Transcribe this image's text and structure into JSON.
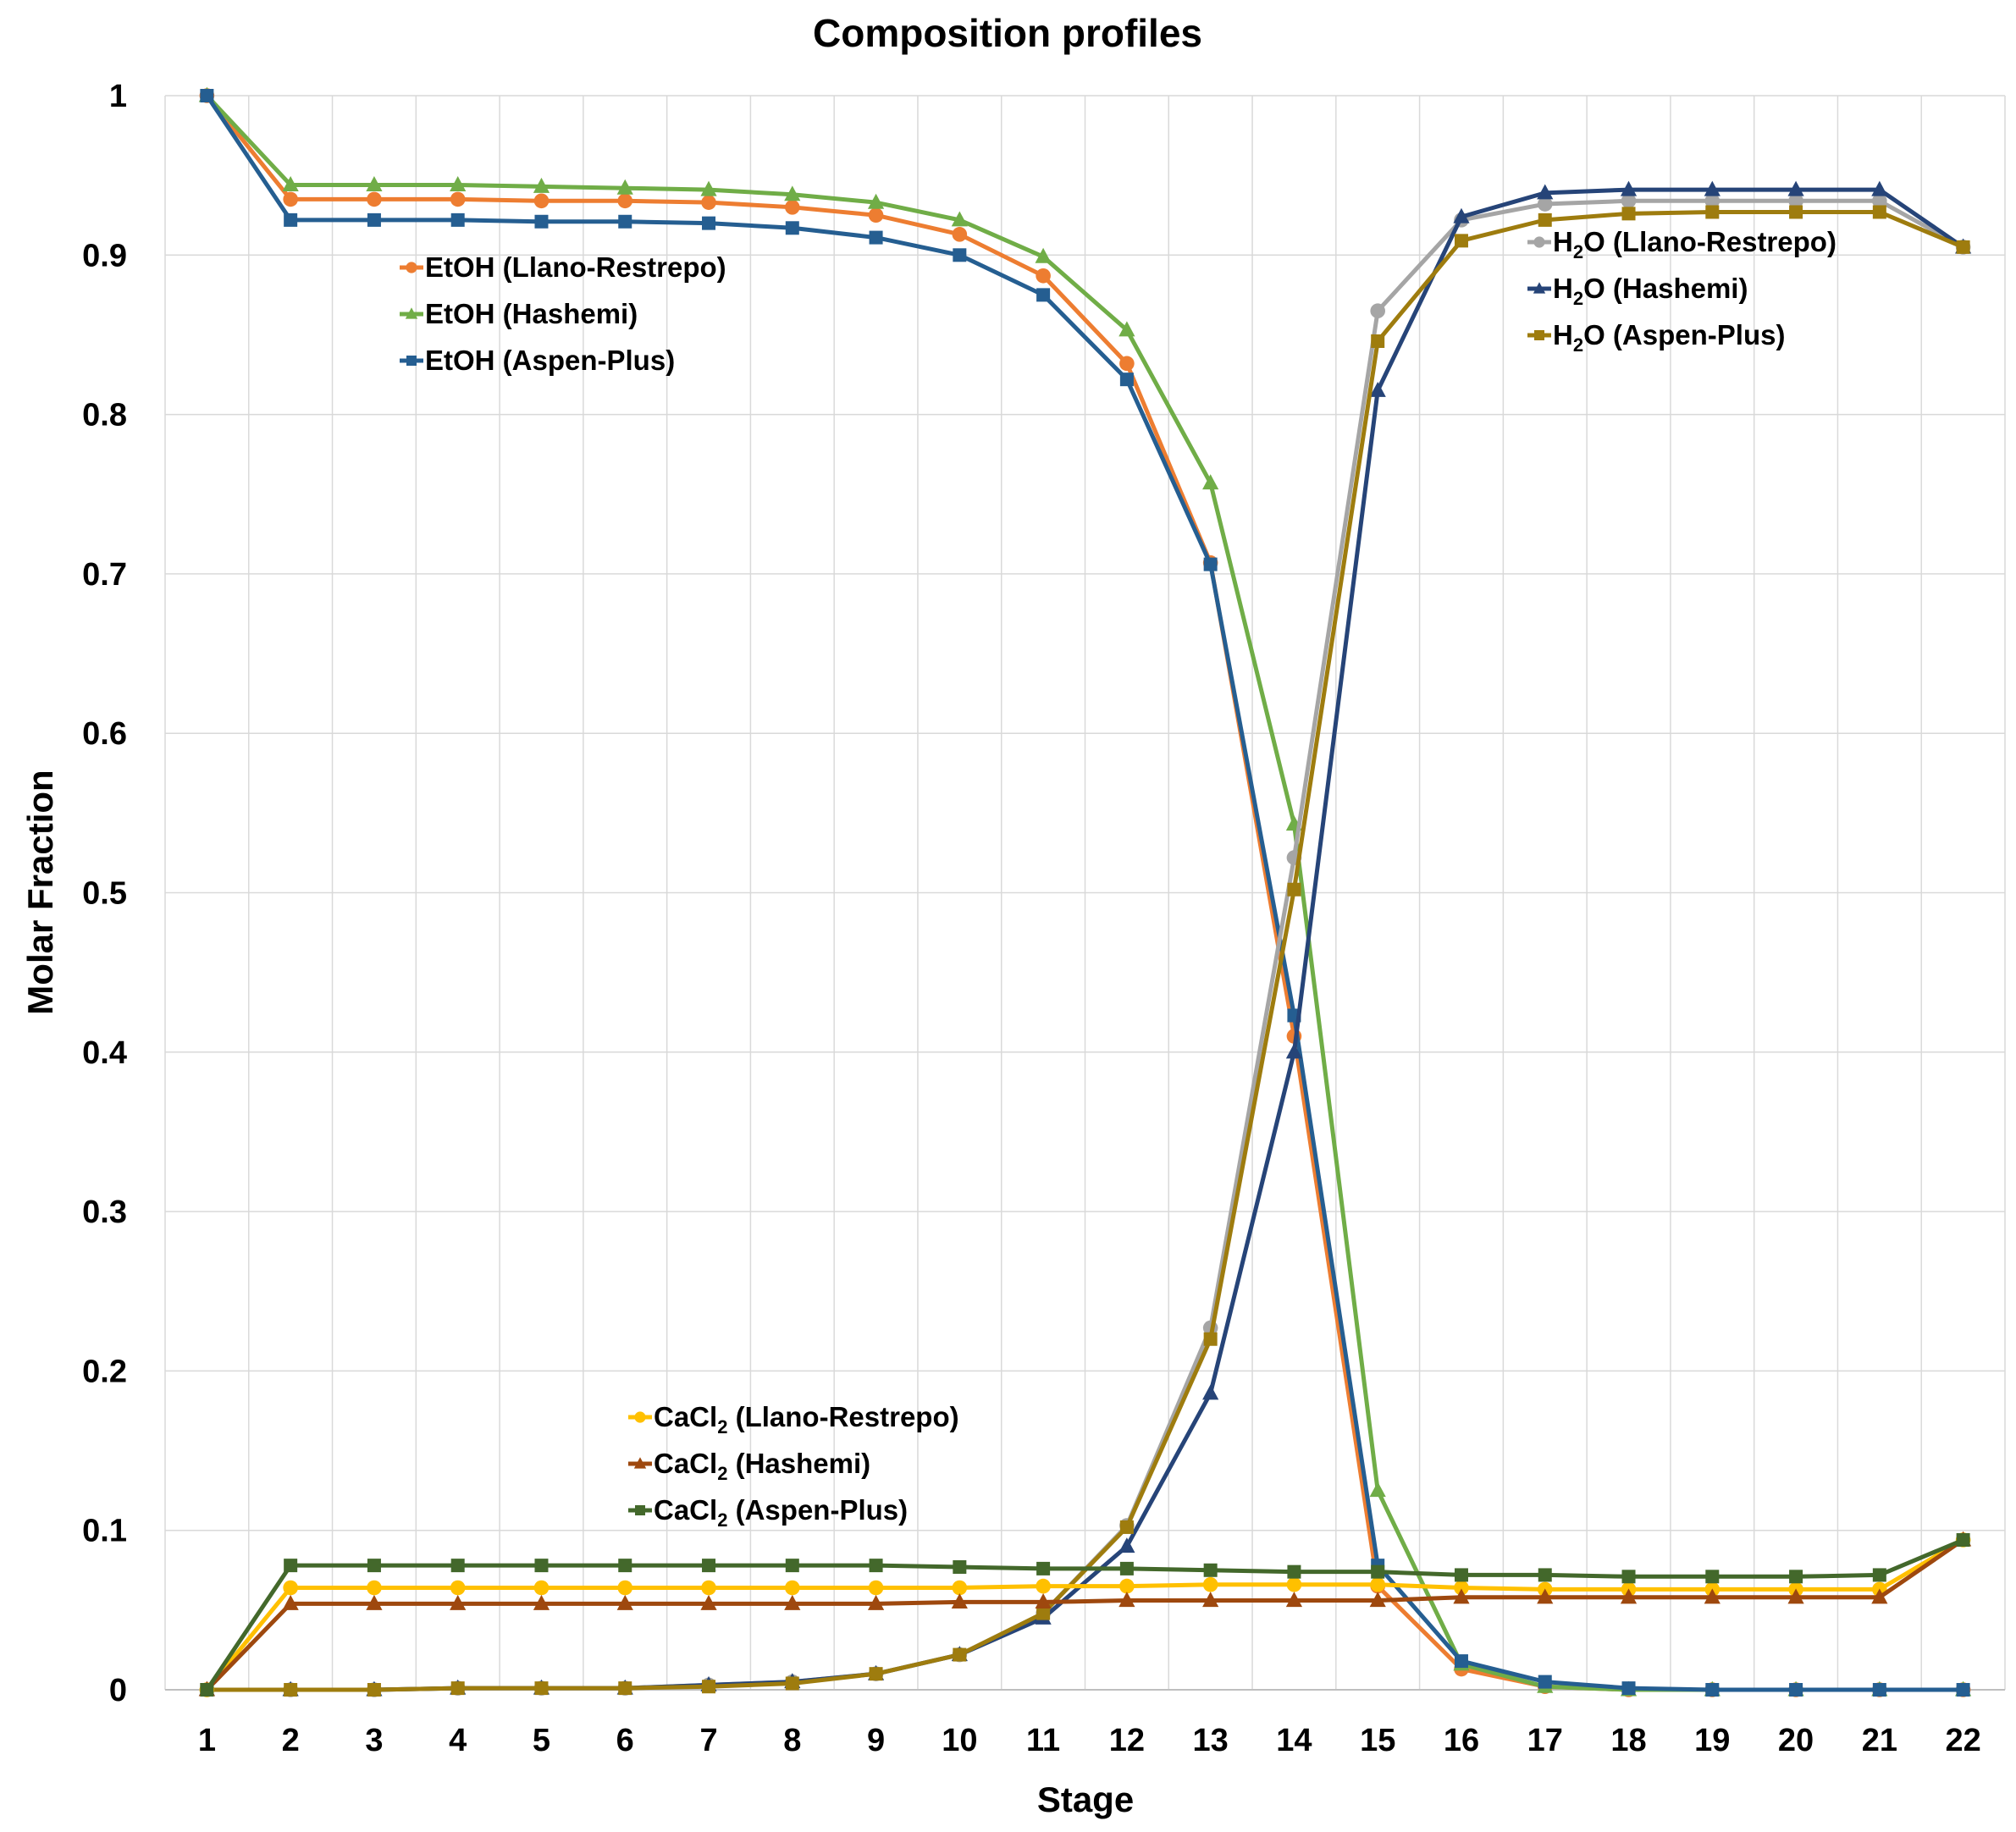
{
  "chart_data": {
    "type": "line",
    "title": "Composition profiles",
    "xlabel": "Stage",
    "ylabel": "Molar Fraction",
    "categories": [
      "1",
      "2",
      "3",
      "4",
      "5",
      "6",
      "7",
      "8",
      "9",
      "10",
      "11",
      "12",
      "13",
      "14",
      "15",
      "16",
      "17",
      "18",
      "19",
      "20",
      "21",
      "22"
    ],
    "ylim": [
      0,
      1
    ],
    "yticks": [
      "0",
      "0.1",
      "0.2",
      "0.3",
      "0.4",
      "0.5",
      "0.6",
      "0.7",
      "0.8",
      "0.9",
      "1"
    ],
    "grid": true,
    "legend_groups": [
      {
        "placement": "upper-left",
        "series": [
          0,
          1,
          2
        ]
      },
      {
        "placement": "upper-right",
        "series": [
          3,
          4,
          5
        ]
      },
      {
        "placement": "lower-center",
        "series": [
          6,
          7,
          8
        ]
      }
    ],
    "series": [
      {
        "name": "EtOH (Llano-Restrepo)",
        "legend_main": "EtOH (Llano-Restrepo)",
        "color": "#ED7D31",
        "marker": "circle",
        "values": [
          1.0,
          0.935,
          0.935,
          0.935,
          0.934,
          0.934,
          0.933,
          0.93,
          0.925,
          0.913,
          0.887,
          0.832,
          0.707,
          0.41,
          0.065,
          0.013,
          0.002,
          0.0,
          0.0,
          0.0,
          0.0,
          0.0
        ]
      },
      {
        "name": "EtOH (Hashemi)",
        "legend_main": "EtOH (Hashemi)",
        "color": "#70AD47",
        "marker": "triangle",
        "values": [
          1.0,
          0.944,
          0.944,
          0.944,
          0.943,
          0.942,
          0.941,
          0.938,
          0.933,
          0.922,
          0.899,
          0.853,
          0.757,
          0.543,
          0.125,
          0.016,
          0.002,
          0.0,
          0.0,
          0.0,
          0.0,
          0.0
        ]
      },
      {
        "name": "EtOH (Aspen-Plus)",
        "legend_main": "EtOH (Aspen-Plus)",
        "color": "#255E91",
        "marker": "square",
        "values": [
          1.0,
          0.922,
          0.922,
          0.922,
          0.921,
          0.921,
          0.92,
          0.917,
          0.911,
          0.9,
          0.875,
          0.822,
          0.706,
          0.423,
          0.078,
          0.018,
          0.005,
          0.001,
          0.0,
          0.0,
          0.0,
          0.0
        ]
      },
      {
        "name": "H2O (Llano-Restrepo)",
        "legend_pre": "H",
        "legend_sub": "2",
        "legend_post": "O (Llano-Restrepo)",
        "color": "#A5A5A5",
        "marker": "circle",
        "values": [
          0.0,
          0.0,
          0.0,
          0.001,
          0.001,
          0.001,
          0.003,
          0.005,
          0.01,
          0.022,
          0.048,
          0.103,
          0.227,
          0.522,
          0.865,
          0.922,
          0.932,
          0.934,
          0.934,
          0.934,
          0.934,
          0.905
        ]
      },
      {
        "name": "H2O (Hashemi)",
        "legend_pre": "H",
        "legend_sub": "2",
        "legend_post": "O (Hashemi)",
        "color": "#264478",
        "marker": "triangle",
        "values": [
          0.0,
          0.0,
          0.0,
          0.001,
          0.001,
          0.001,
          0.003,
          0.005,
          0.01,
          0.022,
          0.045,
          0.09,
          0.186,
          0.4,
          0.815,
          0.924,
          0.939,
          0.941,
          0.941,
          0.941,
          0.941,
          0.905
        ]
      },
      {
        "name": "H2O (Aspen-Plus)",
        "legend_pre": "H",
        "legend_sub": "2",
        "legend_post": "O (Aspen-Plus)",
        "color": "#9E7C0E",
        "marker": "square",
        "values": [
          0.0,
          0.0,
          0.0,
          0.001,
          0.001,
          0.001,
          0.002,
          0.004,
          0.01,
          0.022,
          0.048,
          0.102,
          0.22,
          0.502,
          0.846,
          0.909,
          0.922,
          0.926,
          0.927,
          0.927,
          0.927,
          0.905
        ]
      },
      {
        "name": "CaCl2 (Llano-Restrepo)",
        "legend_pre": "CaCl",
        "legend_sub": "2",
        "legend_post": " (Llano-Restrepo)",
        "color": "#FFC000",
        "marker": "circle",
        "values": [
          0.0,
          0.064,
          0.064,
          0.064,
          0.064,
          0.064,
          0.064,
          0.064,
          0.064,
          0.064,
          0.065,
          0.065,
          0.066,
          0.066,
          0.066,
          0.064,
          0.063,
          0.063,
          0.063,
          0.063,
          0.063,
          0.094
        ]
      },
      {
        "name": "CaCl2 (Hashemi)",
        "legend_pre": "CaCl",
        "legend_sub": "2",
        "legend_post": " (Hashemi)",
        "color": "#9E480E",
        "marker": "triangle",
        "values": [
          0.0,
          0.054,
          0.054,
          0.054,
          0.054,
          0.054,
          0.054,
          0.054,
          0.054,
          0.055,
          0.055,
          0.056,
          0.056,
          0.056,
          0.056,
          0.058,
          0.058,
          0.058,
          0.058,
          0.058,
          0.058,
          0.094
        ]
      },
      {
        "name": "CaCl2 (Aspen-Plus)",
        "legend_pre": "CaCl",
        "legend_sub": "2",
        "legend_post": " (Aspen-Plus)",
        "color": "#43682B",
        "marker": "square",
        "values": [
          0.0,
          0.078,
          0.078,
          0.078,
          0.078,
          0.078,
          0.078,
          0.078,
          0.078,
          0.077,
          0.076,
          0.076,
          0.075,
          0.074,
          0.074,
          0.072,
          0.072,
          0.071,
          0.071,
          0.071,
          0.072,
          0.094
        ]
      }
    ]
  }
}
